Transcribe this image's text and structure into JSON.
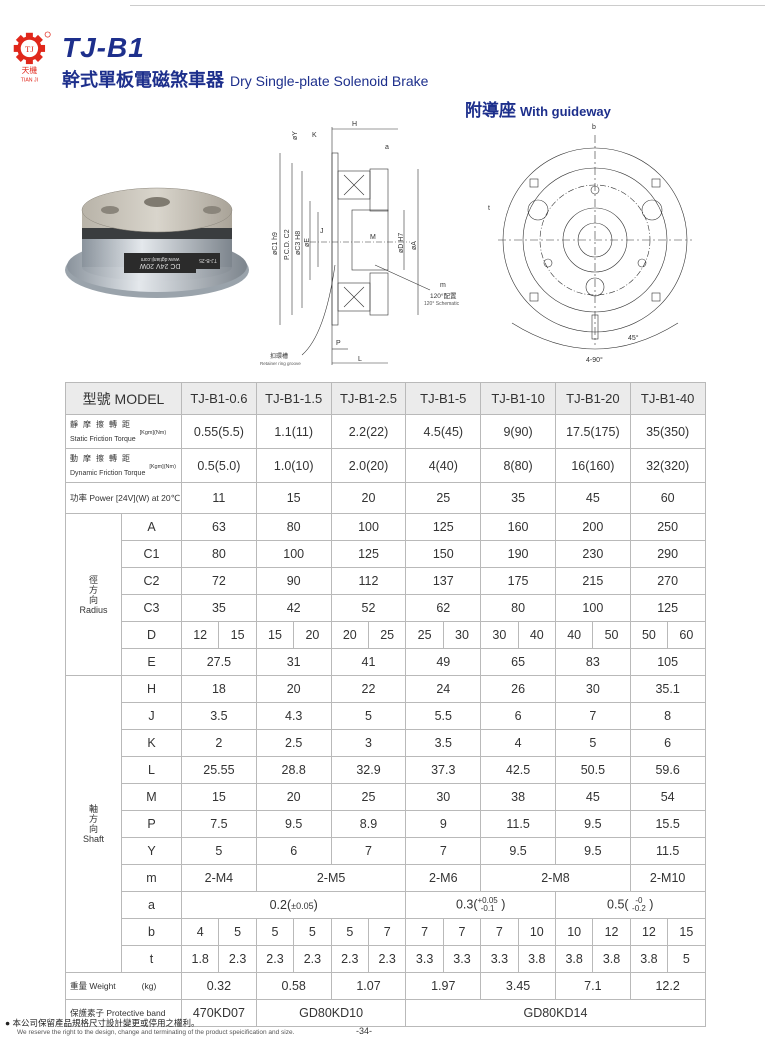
{
  "header": {
    "logo_text": "TJ",
    "logo_cn": "天機",
    "logo_en": "TIAN JI",
    "title": "TJ-B1",
    "subtitle_cn": "幹式單板電磁煞車器",
    "subtitle_en": "Dry Single-plate Solenoid Brake",
    "guideway_cn": "附導座",
    "guideway_en": "With guideway",
    "brand_color": "#1d2f8c",
    "logo_color": "#e0271b"
  },
  "photo": {
    "label_line1": "www.dgtianji.com",
    "label_line2": "DC 24V 20W",
    "label_side": "TJ-B-25"
  },
  "drawing_side": {
    "labels": [
      "H",
      "K",
      "øY",
      "a",
      "øC1 h9",
      "P.C.D. C2",
      "øC3 H8",
      "øE",
      "J",
      "M",
      "øD H7",
      "øA",
      "m",
      "P",
      "L"
    ],
    "note_cn": "120°配置",
    "note_en": "120° Schematic",
    "groove_cn": "扣環槽",
    "groove_en": "Retainer ring groove"
  },
  "drawing_front": {
    "labels": [
      "b",
      "t",
      "45°",
      "4-90°"
    ]
  },
  "table": {
    "header": {
      "label": "型號 MODEL",
      "models": [
        "TJ-B1-0.6",
        "TJ-B1-1.5",
        "TJ-B1-2.5",
        "TJ-B1-5",
        "TJ-B1-10",
        "TJ-B1-20",
        "TJ-B1-40"
      ]
    },
    "static": {
      "cn": "靜摩擦轉距",
      "en": "Static Friction Torque",
      "unit": "[Kgm](Nm)",
      "values": [
        "0.55(5.5)",
        "1.1(11)",
        "2.2(22)",
        "4.5(45)",
        "9(90)",
        "17.5(175)",
        "35(350)"
      ]
    },
    "dynamic": {
      "cn": "動摩擦轉距",
      "en": "Dynamic Friction Torque",
      "unit": "[Kgm](Nm)",
      "values": [
        "0.5(5.0)",
        "1.0(10)",
        "2.0(20)",
        "4(40)",
        "8(80)",
        "16(160)",
        "32(320)"
      ]
    },
    "power": {
      "label": "功率 Power [24V](W) at 20℃",
      "values": [
        "11",
        "15",
        "20",
        "25",
        "35",
        "45",
        "60"
      ]
    },
    "radius": {
      "group_cn": "徑方向",
      "group_en": "Radius",
      "rows": [
        {
          "sym": "A",
          "cells": [
            [
              "63",
              2
            ],
            [
              "80",
              2
            ],
            [
              "100",
              2
            ],
            [
              "125",
              2
            ],
            [
              "160",
              2
            ],
            [
              "200",
              2
            ],
            [
              "250",
              2
            ]
          ]
        },
        {
          "sym": "C1",
          "cells": [
            [
              "80",
              2
            ],
            [
              "100",
              2
            ],
            [
              "125",
              2
            ],
            [
              "150",
              2
            ],
            [
              "190",
              2
            ],
            [
              "230",
              2
            ],
            [
              "290",
              2
            ]
          ]
        },
        {
          "sym": "C2",
          "cells": [
            [
              "72",
              2
            ],
            [
              "90",
              2
            ],
            [
              "112",
              2
            ],
            [
              "137",
              2
            ],
            [
              "175",
              2
            ],
            [
              "215",
              2
            ],
            [
              "270",
              2
            ]
          ]
        },
        {
          "sym": "C3",
          "cells": [
            [
              "35",
              2
            ],
            [
              "42",
              2
            ],
            [
              "52",
              2
            ],
            [
              "62",
              2
            ],
            [
              "80",
              2
            ],
            [
              "100",
              2
            ],
            [
              "125",
              2
            ]
          ]
        },
        {
          "sym": "D",
          "cells": [
            [
              "12",
              1
            ],
            [
              "15",
              1
            ],
            [
              "15",
              1
            ],
            [
              "20",
              1
            ],
            [
              "20",
              1
            ],
            [
              "25",
              1
            ],
            [
              "25",
              1
            ],
            [
              "30",
              1
            ],
            [
              "30",
              1
            ],
            [
              "40",
              1
            ],
            [
              "40",
              1
            ],
            [
              "50",
              1
            ],
            [
              "50",
              1
            ],
            [
              "60",
              1
            ]
          ]
        },
        {
          "sym": "E",
          "cells": [
            [
              "27.5",
              2
            ],
            [
              "31",
              2
            ],
            [
              "41",
              2
            ],
            [
              "49",
              2
            ],
            [
              "65",
              2
            ],
            [
              "83",
              2
            ],
            [
              "105",
              2
            ]
          ]
        }
      ]
    },
    "shaft": {
      "group_cn": "軸方向",
      "group_en": "Shaft",
      "rows": [
        {
          "sym": "H",
          "cells": [
            [
              "18",
              2
            ],
            [
              "20",
              2
            ],
            [
              "22",
              2
            ],
            [
              "24",
              2
            ],
            [
              "26",
              2
            ],
            [
              "30",
              2
            ],
            [
              "35.1",
              2
            ]
          ]
        },
        {
          "sym": "J",
          "cells": [
            [
              "3.5",
              2
            ],
            [
              "4.3",
              2
            ],
            [
              "5",
              2
            ],
            [
              "5.5",
              2
            ],
            [
              "6",
              2
            ],
            [
              "7",
              2
            ],
            [
              "8",
              2
            ]
          ]
        },
        {
          "sym": "K",
          "cells": [
            [
              "2",
              2
            ],
            [
              "2.5",
              2
            ],
            [
              "3",
              2
            ],
            [
              "3.5",
              2
            ],
            [
              "4",
              2
            ],
            [
              "5",
              2
            ],
            [
              "6",
              2
            ]
          ]
        },
        {
          "sym": "L",
          "cells": [
            [
              "25.55",
              2
            ],
            [
              "28.8",
              2
            ],
            [
              "32.9",
              2
            ],
            [
              "37.3",
              2
            ],
            [
              "42.5",
              2
            ],
            [
              "50.5",
              2
            ],
            [
              "59.6",
              2
            ]
          ]
        },
        {
          "sym": "M",
          "cells": [
            [
              "15",
              2
            ],
            [
              "20",
              2
            ],
            [
              "25",
              2
            ],
            [
              "30",
              2
            ],
            [
              "38",
              2
            ],
            [
              "45",
              2
            ],
            [
              "54",
              2
            ]
          ]
        },
        {
          "sym": "P",
          "cells": [
            [
              "7.5",
              2
            ],
            [
              "9.5",
              2
            ],
            [
              "8.9",
              2
            ],
            [
              "9",
              2
            ],
            [
              "11.5",
              2
            ],
            [
              "9.5",
              2
            ],
            [
              "15.5",
              2
            ]
          ]
        },
        {
          "sym": "Y",
          "cells": [
            [
              "5",
              2
            ],
            [
              "6",
              2
            ],
            [
              "7",
              2
            ],
            [
              "7",
              2
            ],
            [
              "9.5",
              2
            ],
            [
              "9.5",
              2
            ],
            [
              "11.5",
              2
            ]
          ]
        },
        {
          "sym": "m",
          "cells": [
            [
              "2-M4",
              2
            ],
            [
              "2-M5",
              4
            ],
            [
              "2-M6",
              2
            ],
            [
              "2-M8",
              4
            ],
            [
              "2-M10",
              2
            ]
          ]
        },
        {
          "sym": "a",
          "tol": [
            {
              "base": "0.2(",
              "pm": "±0.05",
              "tail": ")",
              "span": 6
            },
            {
              "base": "0.3(",
              "up": "+0.05",
              "down": "-0.1",
              "tail": " )",
              "span": 4
            },
            {
              "base": "0.5( ",
              "up": "-0",
              "down": "-0.2",
              "tail": " )",
              "span": 4
            }
          ]
        },
        {
          "sym": "b",
          "cells": [
            [
              "4",
              1
            ],
            [
              "5",
              1
            ],
            [
              "5",
              1
            ],
            [
              "5",
              1
            ],
            [
              "5",
              1
            ],
            [
              "7",
              1
            ],
            [
              "7",
              1
            ],
            [
              "7",
              1
            ],
            [
              "7",
              1
            ],
            [
              "10",
              1
            ],
            [
              "10",
              1
            ],
            [
              "12",
              1
            ],
            [
              "12",
              1
            ],
            [
              "15",
              1
            ]
          ]
        },
        {
          "sym": "t",
          "cells": [
            [
              "1.8",
              1
            ],
            [
              "2.3",
              1
            ],
            [
              "2.3",
              1
            ],
            [
              "2.3",
              1
            ],
            [
              "2.3",
              1
            ],
            [
              "2.3",
              1
            ],
            [
              "3.3",
              1
            ],
            [
              "3.3",
              1
            ],
            [
              "3.3",
              1
            ],
            [
              "3.8",
              1
            ],
            [
              "3.8",
              1
            ],
            [
              "3.8",
              1
            ],
            [
              "3.8",
              1
            ],
            [
              "5",
              1
            ]
          ]
        }
      ]
    },
    "weight": {
      "label": "重量 Weight",
      "unit": "(kg)",
      "cells": [
        [
          "0.32",
          2
        ],
        [
          "0.58",
          2
        ],
        [
          "1.07",
          2
        ],
        [
          "1.97",
          2
        ],
        [
          "3.45",
          2
        ],
        [
          "7.1",
          2
        ],
        [
          "12.2",
          2
        ]
      ]
    },
    "band": {
      "label": "保護素子 Protective band",
      "cells": [
        [
          "470KD07",
          2
        ],
        [
          "GD80KD10",
          4
        ],
        [
          "GD80KD14",
          8
        ]
      ]
    }
  },
  "footer": {
    "note_cn": "本公司保留產品規格尺寸設計變更或停用之權利。",
    "note_en": "We reserve the right to the design, change and terminating of the product speicification and size.",
    "page": "-34-"
  }
}
